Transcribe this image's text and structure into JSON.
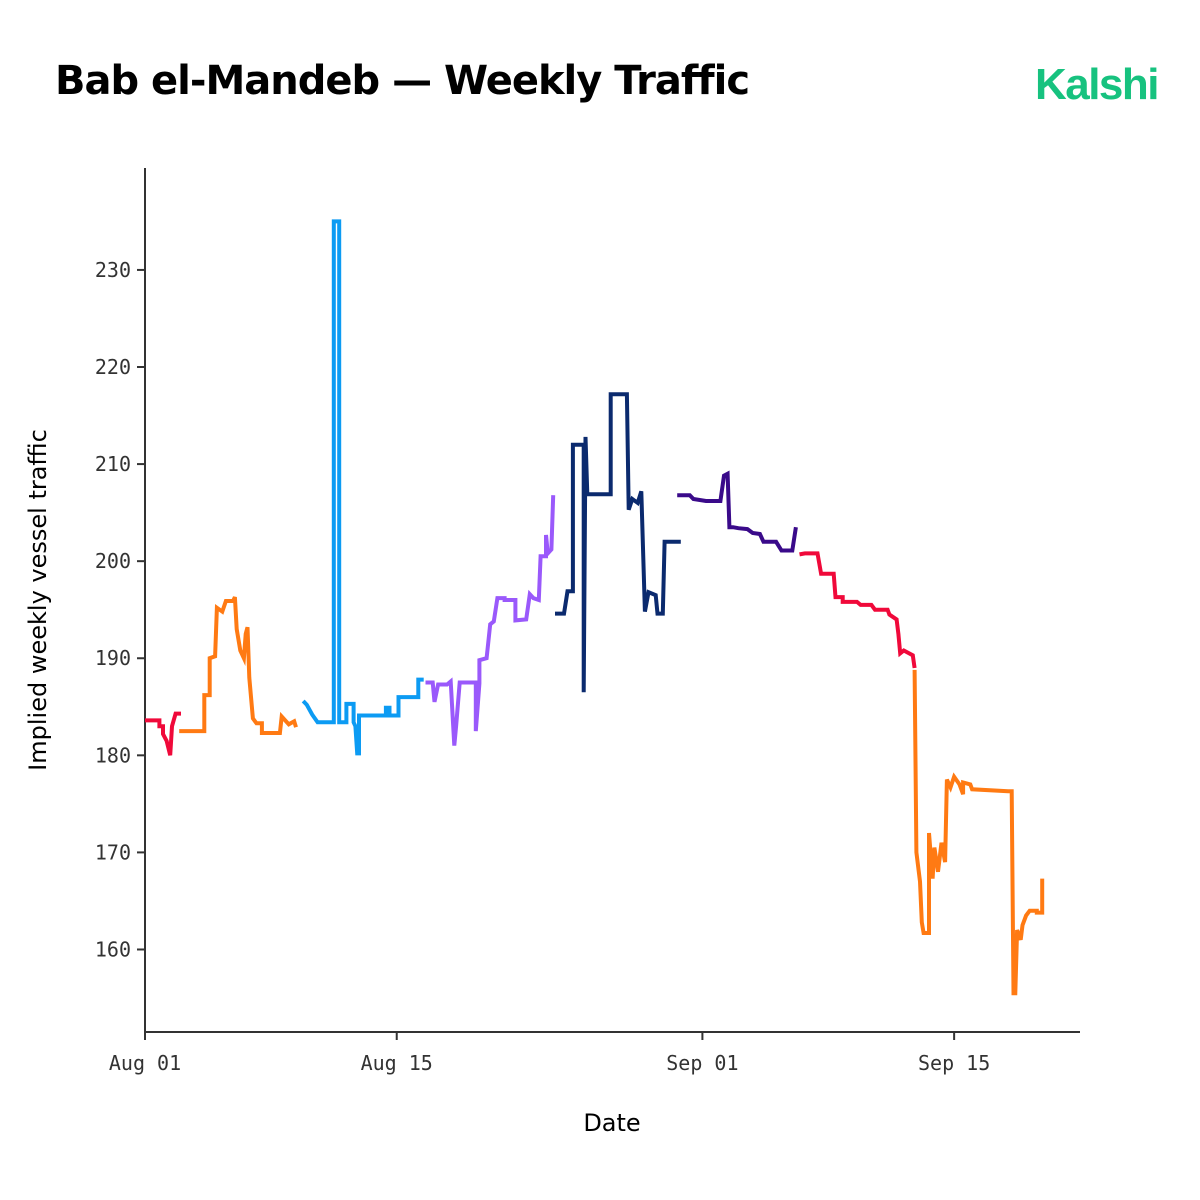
{
  "header": {
    "title": "Bab el-Mandeb — Weekly Traffic",
    "brand": "Kalshi"
  },
  "chart_data": {
    "type": "line",
    "title": "Bab el-Mandeb — Weekly Traffic",
    "xlabel": "Date",
    "ylabel": "Implied weekly vessel traffic",
    "x_ticks": [
      {
        "label": "Aug 01",
        "day": 0
      },
      {
        "label": "Aug 15",
        "day": 14
      },
      {
        "label": "Sep 01",
        "day": 31
      },
      {
        "label": "Sep 15",
        "day": 45
      }
    ],
    "y_ticks": [
      160,
      170,
      180,
      190,
      200,
      210,
      220,
      230
    ],
    "xlim": [
      "2025-08-01",
      "2025-09-22"
    ],
    "ylim": [
      151.5,
      240.5
    ],
    "grid": false,
    "series": [
      {
        "color": "#f0093a",
        "points": [
          [
            0.0,
            183.6
          ],
          [
            0.8,
            183.6
          ],
          [
            0.8,
            183.0
          ],
          [
            1.0,
            183.0
          ],
          [
            1.0,
            182.2
          ],
          [
            1.2,
            181.5
          ],
          [
            1.4,
            180.0
          ],
          [
            1.5,
            183.0
          ],
          [
            1.7,
            184.3
          ],
          [
            2.0,
            184.3
          ]
        ]
      },
      {
        "color": "#ff7a13",
        "points": [
          [
            1.9,
            182.5
          ],
          [
            3.3,
            182.5
          ],
          [
            3.3,
            186.2
          ],
          [
            3.6,
            186.2
          ],
          [
            3.6,
            190.0
          ],
          [
            3.9,
            190.2
          ],
          [
            4.0,
            195.2
          ],
          [
            4.3,
            194.8
          ],
          [
            4.5,
            195.9
          ],
          [
            4.9,
            195.9
          ],
          [
            5.0,
            196.3
          ],
          [
            5.1,
            193.0
          ],
          [
            5.3,
            190.8
          ],
          [
            5.5,
            190.0
          ],
          [
            5.6,
            192.5
          ],
          [
            5.7,
            193.2
          ],
          [
            5.8,
            188.0
          ],
          [
            6.0,
            183.8
          ],
          [
            6.2,
            183.3
          ],
          [
            6.5,
            183.3
          ],
          [
            6.5,
            182.3
          ],
          [
            7.5,
            182.3
          ],
          [
            7.6,
            184.0
          ],
          [
            8.0,
            183.2
          ],
          [
            8.3,
            183.5
          ],
          [
            8.4,
            182.9
          ]
        ]
      },
      {
        "color": "#0c9bf3",
        "points": [
          [
            8.8,
            185.6
          ],
          [
            9.0,
            185.2
          ],
          [
            9.3,
            184.2
          ],
          [
            9.6,
            183.4
          ],
          [
            10.5,
            183.4
          ],
          [
            10.5,
            235.0
          ],
          [
            10.8,
            235.0
          ],
          [
            10.8,
            183.4
          ],
          [
            11.2,
            183.4
          ],
          [
            11.2,
            185.3
          ],
          [
            11.6,
            185.3
          ],
          [
            11.6,
            183.4
          ],
          [
            11.7,
            183.0
          ],
          [
            11.8,
            180.2
          ],
          [
            11.9,
            180.2
          ],
          [
            11.9,
            184.1
          ],
          [
            13.4,
            184.1
          ],
          [
            13.4,
            184.9
          ],
          [
            13.6,
            184.9
          ],
          [
            13.6,
            184.1
          ],
          [
            14.1,
            184.1
          ],
          [
            14.1,
            186.0
          ],
          [
            15.2,
            186.0
          ],
          [
            15.2,
            187.8
          ],
          [
            15.5,
            187.8
          ]
        ]
      },
      {
        "color": "#9a59fb",
        "points": [
          [
            15.6,
            187.5
          ],
          [
            16.0,
            187.5
          ],
          [
            16.1,
            185.5
          ],
          [
            16.3,
            187.3
          ],
          [
            16.8,
            187.3
          ],
          [
            17.0,
            187.6
          ],
          [
            17.2,
            181.0
          ],
          [
            17.3,
            183.0
          ],
          [
            17.5,
            187.5
          ],
          [
            18.4,
            187.5
          ],
          [
            18.4,
            182.5
          ],
          [
            18.6,
            187.4
          ],
          [
            18.6,
            189.8
          ],
          [
            19.0,
            190.0
          ],
          [
            19.2,
            193.5
          ],
          [
            19.4,
            193.8
          ],
          [
            19.6,
            196.2
          ],
          [
            20.0,
            196.2
          ],
          [
            20.0,
            196.0
          ],
          [
            20.6,
            196.0
          ],
          [
            20.6,
            193.9
          ],
          [
            21.2,
            194.0
          ],
          [
            21.4,
            196.6
          ],
          [
            21.6,
            196.2
          ],
          [
            21.9,
            196.0
          ],
          [
            22.0,
            200.5
          ],
          [
            22.3,
            200.5
          ],
          [
            22.3,
            202.7
          ],
          [
            22.4,
            200.8
          ],
          [
            22.6,
            201.2
          ],
          [
            22.7,
            206.8
          ]
        ]
      },
      {
        "color": "#0b2a6e",
        "points": [
          [
            22.8,
            194.6
          ],
          [
            23.3,
            194.6
          ],
          [
            23.5,
            196.9
          ],
          [
            23.8,
            196.9
          ],
          [
            23.8,
            212.0
          ],
          [
            24.4,
            212.0
          ],
          [
            24.4,
            186.5
          ],
          [
            24.5,
            212.8
          ],
          [
            24.6,
            206.9
          ],
          [
            25.9,
            206.9
          ],
          [
            25.9,
            217.2
          ],
          [
            26.8,
            217.2
          ],
          [
            26.9,
            205.3
          ],
          [
            27.1,
            206.4
          ],
          [
            27.4,
            206.0
          ],
          [
            27.6,
            207.2
          ],
          [
            27.8,
            194.8
          ],
          [
            28.0,
            196.8
          ],
          [
            28.4,
            196.5
          ],
          [
            28.5,
            194.6
          ],
          [
            28.8,
            194.6
          ],
          [
            28.9,
            202.0
          ],
          [
            29.6,
            202.0
          ],
          [
            29.8,
            202.0
          ]
        ]
      },
      {
        "color": "#3a0a8a",
        "points": [
          [
            29.6,
            206.8
          ],
          [
            30.3,
            206.8
          ],
          [
            30.5,
            206.4
          ],
          [
            31.2,
            206.2
          ],
          [
            32.0,
            206.2
          ],
          [
            32.2,
            208.8
          ],
          [
            32.4,
            209.0
          ],
          [
            32.5,
            203.5
          ],
          [
            32.7,
            203.5
          ],
          [
            33.0,
            203.4
          ],
          [
            33.5,
            203.3
          ],
          [
            33.8,
            202.9
          ],
          [
            34.2,
            202.8
          ],
          [
            34.4,
            202.0
          ],
          [
            35.1,
            202.0
          ],
          [
            35.4,
            201.1
          ],
          [
            36.0,
            201.1
          ],
          [
            36.2,
            203.5
          ]
        ]
      },
      {
        "color": "#f0093a",
        "points": [
          [
            36.4,
            200.7
          ],
          [
            36.7,
            200.8
          ],
          [
            37.4,
            200.8
          ],
          [
            37.6,
            198.7
          ],
          [
            38.3,
            198.7
          ],
          [
            38.4,
            196.3
          ],
          [
            38.8,
            196.3
          ],
          [
            38.8,
            195.8
          ],
          [
            39.6,
            195.8
          ],
          [
            39.8,
            195.5
          ],
          [
            40.4,
            195.5
          ],
          [
            40.6,
            195.0
          ],
          [
            41.3,
            195.0
          ],
          [
            41.4,
            194.5
          ],
          [
            41.8,
            194.0
          ],
          [
            41.9,
            192.5
          ],
          [
            42.0,
            190.5
          ],
          [
            42.2,
            190.8
          ],
          [
            42.5,
            190.5
          ],
          [
            42.7,
            190.3
          ],
          [
            42.8,
            189.0
          ]
        ]
      },
      {
        "color": "#ff7a13",
        "points": [
          [
            42.8,
            188.8
          ],
          [
            42.9,
            170.0
          ],
          [
            43.1,
            167.0
          ],
          [
            43.2,
            162.8
          ],
          [
            43.3,
            161.7
          ],
          [
            43.6,
            161.7
          ],
          [
            43.6,
            172.0
          ],
          [
            43.8,
            167.3
          ],
          [
            43.9,
            170.5
          ],
          [
            44.1,
            168.0
          ],
          [
            44.3,
            171.0
          ],
          [
            44.5,
            169.0
          ],
          [
            44.6,
            177.5
          ],
          [
            44.8,
            176.7
          ],
          [
            45.0,
            177.8
          ],
          [
            45.3,
            177.0
          ],
          [
            45.5,
            176.0
          ],
          [
            45.5,
            177.2
          ],
          [
            45.9,
            177.0
          ],
          [
            46.0,
            176.5
          ],
          [
            48.0,
            176.3
          ],
          [
            48.2,
            176.3
          ],
          [
            48.3,
            155.5
          ],
          [
            48.4,
            155.5
          ],
          [
            48.5,
            162.0
          ],
          [
            48.7,
            161.0
          ],
          [
            48.8,
            162.5
          ],
          [
            49.0,
            163.5
          ],
          [
            49.2,
            164.0
          ],
          [
            49.6,
            164.0
          ],
          [
            49.6,
            163.8
          ],
          [
            49.9,
            163.8
          ],
          [
            49.9,
            167.3
          ]
        ]
      }
    ]
  }
}
